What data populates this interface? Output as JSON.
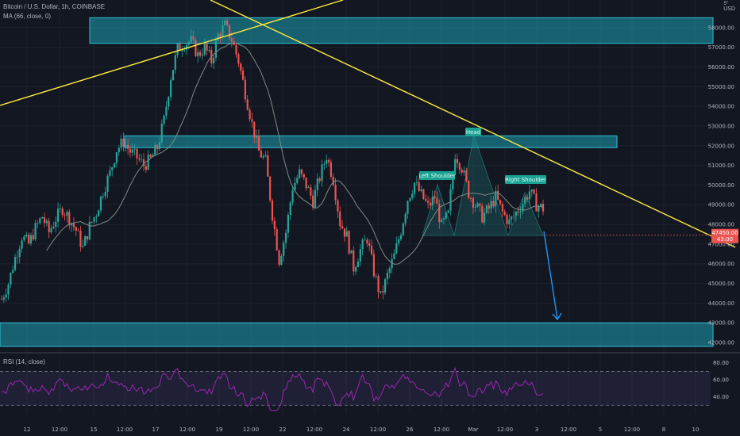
{
  "header": {
    "symbol_line": "Bitcoin / U.S. Dollar, 1h, COINBASE",
    "ma_line": "MA (66, close, 0)",
    "rsi_line": "RSI (14, close)",
    "currency": "USD",
    "currency_top": "5″"
  },
  "colors": {
    "background": "#131722",
    "up_candle": "#26a69a",
    "down_candle": "#ef5350",
    "zone_fill": "#1e9fb0",
    "trendline": "#ffeb3b",
    "ma_line": "#7e8a84",
    "rsi_line": "#9c27b0",
    "arrow": "#2196f3",
    "pattern_label_bg": "#1aa393",
    "price_tag": "#ef5350"
  },
  "chart_data": [
    {
      "type": "candlestick",
      "title": "Bitcoin / U.S. Dollar, 1h, COINBASE",
      "ylim": [
        41600,
        59400
      ],
      "y_ticks": [
        "42000.00",
        "43000.00",
        "44000.00",
        "45000.00",
        "46000.00",
        "47000.00",
        "48000.00",
        "49000.00",
        "50000.00",
        "51000.00",
        "52000.00",
        "53000.00",
        "54000.00",
        "55000.00",
        "56000.00",
        "57000.00",
        "58000.00"
      ],
      "x_ticks": [
        "12",
        "12:00",
        "15",
        "12:00",
        "17",
        "12:00",
        "19",
        "12:00",
        "22",
        "12:00",
        "24",
        "12:00",
        "26",
        "12:00",
        "Mar",
        "12:00",
        "3",
        "12:00",
        "5",
        "12:00",
        "8",
        "10",
        "12",
        "12:00"
      ],
      "price_path": [
        [
          0,
          44200
        ],
        [
          3,
          45000
        ],
        [
          6,
          46300
        ],
        [
          9,
          47400
        ],
        [
          12,
          47000
        ],
        [
          15,
          47800
        ],
        [
          18,
          48400
        ],
        [
          21,
          47600
        ],
        [
          24,
          48300
        ],
        [
          27,
          48800
        ],
        [
          30,
          48300
        ],
        [
          33,
          47700
        ],
        [
          36,
          46800
        ],
        [
          39,
          47900
        ],
        [
          42,
          48600
        ],
        [
          45,
          49700
        ],
        [
          48,
          50600
        ],
        [
          51,
          51800
        ],
        [
          54,
          52200
        ],
        [
          57,
          51700
        ],
        [
          60,
          51400
        ],
        [
          63,
          51000
        ],
        [
          66,
          51300
        ],
        [
          69,
          51900
        ],
        [
          72,
          53300
        ],
        [
          75,
          55500
        ],
        [
          78,
          56900
        ],
        [
          81,
          57200
        ],
        [
          84,
          57300
        ],
        [
          87,
          56600
        ],
        [
          90,
          57000
        ],
        [
          93,
          56300
        ],
        [
          96,
          57600
        ],
        [
          99,
          58100
        ],
        [
          102,
          57400
        ],
        [
          105,
          56300
        ],
        [
          108,
          54700
        ],
        [
          111,
          53100
        ],
        [
          114,
          51700
        ],
        [
          117,
          51200
        ],
        [
          120,
          48500
        ],
        [
          123,
          46200
        ],
        [
          126,
          47600
        ],
        [
          129,
          49900
        ],
        [
          132,
          50600
        ],
        [
          135,
          50000
        ],
        [
          138,
          49200
        ],
        [
          141,
          50400
        ],
        [
          144,
          51500
        ],
        [
          147,
          50300
        ],
        [
          150,
          48100
        ],
        [
          153,
          47400
        ],
        [
          156,
          45800
        ],
        [
          159,
          46700
        ],
        [
          162,
          47300
        ],
        [
          165,
          45600
        ],
        [
          168,
          44300
        ],
        [
          171,
          45400
        ],
        [
          174,
          46400
        ],
        [
          177,
          47700
        ],
        [
          180,
          49300
        ],
        [
          183,
          50100
        ],
        [
          186,
          49500
        ],
        [
          189,
          48900
        ],
        [
          192,
          49400
        ],
        [
          195,
          47900
        ],
        [
          198,
          48500
        ],
        [
          201,
          51600
        ],
        [
          204,
          50900
        ],
        [
          207,
          49600
        ],
        [
          210,
          49000
        ],
        [
          213,
          48400
        ],
        [
          216,
          48800
        ],
        [
          219,
          49400
        ],
        [
          222,
          48600
        ],
        [
          225,
          48100
        ],
        [
          228,
          48600
        ],
        [
          231,
          49100
        ],
        [
          234,
          49700
        ],
        [
          237,
          49000
        ],
        [
          240,
          48800
        ]
      ],
      "ma_label": "MA (66, close, 0)",
      "zones": [
        {
          "from": 57200,
          "to": 58500,
          "x_start": 0.12
        },
        {
          "from": 51900,
          "to": 52500,
          "x_start": 0.17,
          "x_end": 0.83
        },
        {
          "from": 41800,
          "to": 43000,
          "x_start": 0.0
        }
      ],
      "last_price": "47450.00",
      "countdown": "43:00",
      "annotations": [
        "Left Shoulder",
        "Head",
        "Right Shoulder"
      ]
    },
    {
      "type": "line",
      "title": "RSI (14, close)",
      "ylim": [
        20,
        90
      ],
      "y_ticks": [
        "40.00",
        "60.00",
        "80.00"
      ],
      "levels": [
        30,
        70
      ]
    }
  ]
}
